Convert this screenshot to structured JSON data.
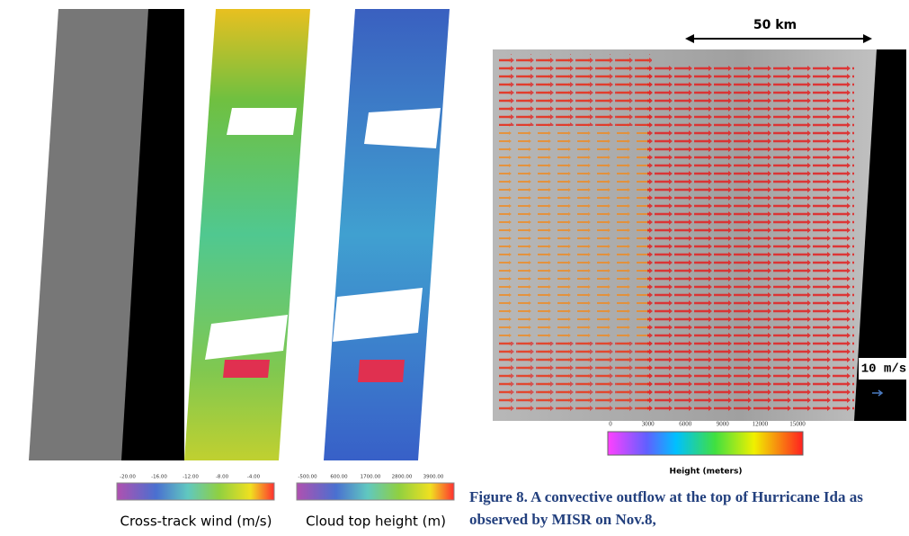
{
  "left_figure": {
    "colorbars": [
      {
        "ticks": [
          "-20.00",
          "-16.00",
          "-12.00",
          "-8.00",
          "-4.00"
        ],
        "label": "Cross-track wind (m/s)"
      },
      {
        "ticks": [
          "-500.00",
          "600.00",
          "1700.00",
          "2800.00",
          "3900.00"
        ],
        "label": "Cloud top height (m)"
      }
    ]
  },
  "right_figure": {
    "scale_label": "50 km",
    "arrow_label": "10 m/s",
    "colorbar": {
      "ticks": [
        "0",
        "3000",
        "6000",
        "9000",
        "12000",
        "15000"
      ],
      "title": "Height (meters)"
    },
    "caption": "Figure 8. A convective outflow at the top of Hurricane Ida as observed by MISR on Nov.8,"
  }
}
